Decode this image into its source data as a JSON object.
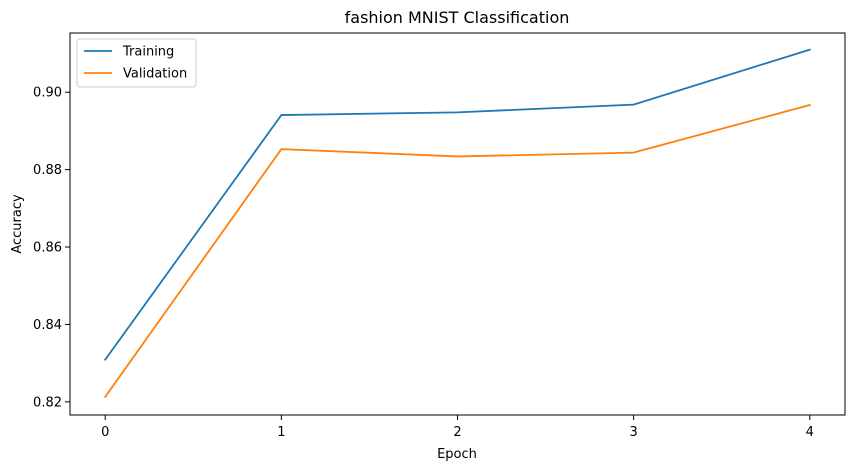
{
  "chart_data": {
    "type": "line",
    "title": "fashion MNIST Classification",
    "xlabel": "Epoch",
    "ylabel": "Accuracy",
    "x": [
      0,
      1,
      2,
      3,
      4
    ],
    "xticks": [
      "0",
      "1",
      "2",
      "3",
      "4"
    ],
    "yticks": [
      "0.82",
      "0.84",
      "0.86",
      "0.88",
      "0.90"
    ],
    "xlim": [
      -0.2,
      4.2
    ],
    "ylim": [
      0.8166,
      0.9153
    ],
    "grid": false,
    "legend_position": "top-left",
    "series": [
      {
        "name": "Training",
        "color": "#1f77b4",
        "values": [
          0.8309,
          0.8941,
          0.8948,
          0.8968,
          0.911
        ]
      },
      {
        "name": "Validation",
        "color": "#ff7f0e",
        "values": [
          0.8213,
          0.8853,
          0.8834,
          0.8844,
          0.8967
        ]
      }
    ]
  }
}
